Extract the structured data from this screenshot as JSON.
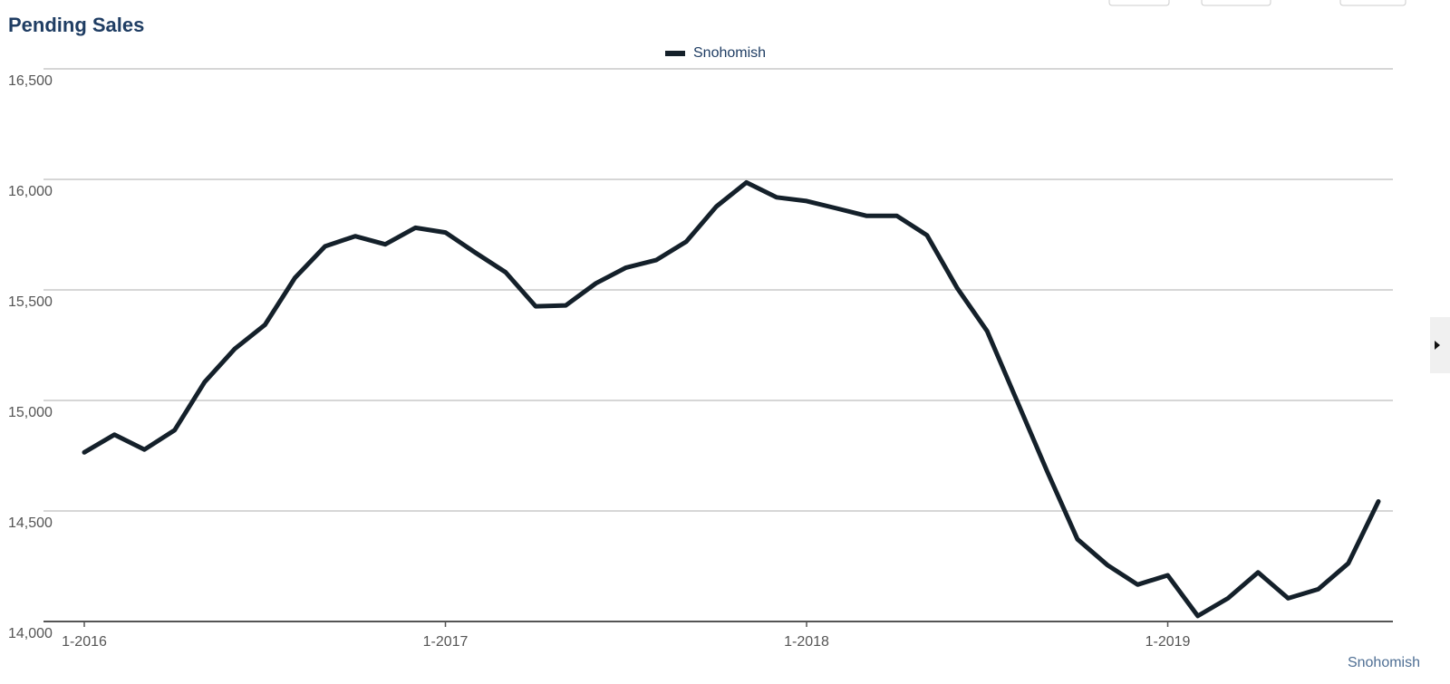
{
  "chart_data": {
    "type": "line",
    "title": "Pending Sales",
    "categories": [
      "1-2016",
      null,
      null,
      null,
      null,
      null,
      null,
      null,
      null,
      null,
      null,
      null,
      "1-2017",
      null,
      null,
      null,
      null,
      null,
      null,
      null,
      null,
      null,
      null,
      null,
      "1-2018",
      null,
      null,
      null,
      null,
      null,
      null,
      null,
      null,
      null,
      null,
      null,
      "1-2019",
      null,
      null,
      null,
      null,
      null,
      null,
      null
    ],
    "series": [
      {
        "name": "Snohomish",
        "color": "#14202a",
        "values": [
          14765,
          14845,
          14778,
          14865,
          15083,
          15233,
          15342,
          15555,
          15697,
          15743,
          15706,
          15781,
          15760,
          15668,
          15580,
          15426,
          15430,
          15530,
          15601,
          15635,
          15718,
          15877,
          15986,
          15919,
          15902,
          15869,
          15835,
          15835,
          15747,
          15509,
          15313,
          14995,
          14677,
          14372,
          14255,
          14167,
          14209,
          14025,
          14105,
          14222,
          14105,
          14146,
          14263,
          14543
        ]
      }
    ],
    "ylim": [
      14000,
      16500
    ],
    "yticks": [
      {
        "value": 14000,
        "label": "14,000"
      },
      {
        "value": 14500,
        "label": "14,500"
      },
      {
        "value": 15000,
        "label": "15,000"
      },
      {
        "value": 15500,
        "label": "15,500"
      },
      {
        "value": 16000,
        "label": "16,000"
      },
      {
        "value": 16500,
        "label": "16,500"
      }
    ],
    "grid": true,
    "legend": "top",
    "footer_label": "Snohomish"
  }
}
